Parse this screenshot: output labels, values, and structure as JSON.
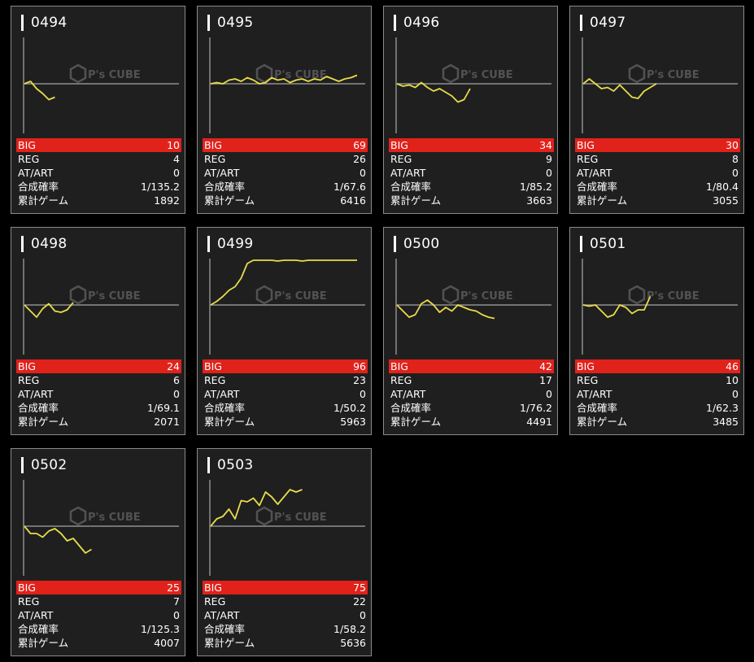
{
  "watermark": {
    "brand": "P's CUBE",
    "icon": "cube-logo-icon"
  },
  "machines": [
    {
      "id": "0494",
      "big": "10",
      "reg": "4",
      "atart": "0",
      "prob": "1/135.2",
      "games": "1892",
      "chart_data": {
        "type": "line",
        "y": [
          0,
          20,
          -40,
          -80,
          -130,
          -110
        ]
      }
    },
    {
      "id": "0495",
      "big": "69",
      "reg": "26",
      "atart": "0",
      "prob": "1/67.6",
      "games": "6416",
      "chart_data": {
        "type": "line",
        "y": [
          0,
          10,
          0,
          30,
          40,
          20,
          50,
          30,
          0,
          10,
          50,
          30,
          40,
          10,
          30,
          40,
          20,
          40,
          30,
          60,
          40,
          20,
          40,
          50,
          70
        ]
      }
    },
    {
      "id": "0496",
      "big": "34",
      "reg": "9",
      "atart": "0",
      "prob": "1/85.2",
      "games": "3663",
      "chart_data": {
        "type": "line",
        "y": [
          0,
          -20,
          -10,
          -30,
          10,
          -30,
          -60,
          -40,
          -70,
          -100,
          -150,
          -130,
          -40
        ]
      }
    },
    {
      "id": "0497",
      "big": "30",
      "reg": "8",
      "atart": "0",
      "prob": "1/80.4",
      "games": "3055",
      "chart_data": {
        "type": "line",
        "y": [
          0,
          40,
          0,
          -40,
          -30,
          -60,
          -10,
          -60,
          -110,
          -120,
          -60,
          -30,
          0
        ]
      }
    },
    {
      "id": "0498",
      "big": "24",
      "reg": "6",
      "atart": "0",
      "prob": "1/69.1",
      "games": "2071",
      "chart_data": {
        "type": "line",
        "y": [
          0,
          -50,
          -100,
          -30,
          10,
          -50,
          -60,
          -40,
          20
        ]
      }
    },
    {
      "id": "0499",
      "big": "96",
      "reg": "23",
      "atart": "0",
      "prob": "1/50.2",
      "games": "5963",
      "chart_data": {
        "type": "line",
        "y": [
          0,
          30,
          70,
          120,
          150,
          220,
          340,
          420,
          430,
          380,
          400,
          360,
          380,
          430,
          400,
          360,
          380,
          440,
          420,
          380,
          420,
          390,
          380,
          400,
          450
        ]
      }
    },
    {
      "id": "0500",
      "big": "42",
      "reg": "17",
      "atart": "0",
      "prob": "1/76.2",
      "games": "4491",
      "chart_data": {
        "type": "line",
        "y": [
          0,
          -50,
          -100,
          -80,
          10,
          40,
          0,
          -60,
          -20,
          -50,
          0,
          -20,
          -40,
          -50,
          -80,
          -100,
          -110
        ]
      }
    },
    {
      "id": "0501",
      "big": "46",
      "reg": "10",
      "atart": "0",
      "prob": "1/62.3",
      "games": "3485",
      "chart_data": {
        "type": "line",
        "y": [
          0,
          -10,
          0,
          -50,
          -100,
          -80,
          0,
          -20,
          -70,
          -40,
          -40,
          70
        ]
      }
    },
    {
      "id": "0502",
      "big": "25",
      "reg": "7",
      "atart": "0",
      "prob": "1/125.3",
      "games": "4007",
      "chart_data": {
        "type": "line",
        "y": [
          0,
          -60,
          -60,
          -90,
          -40,
          -20,
          -60,
          -120,
          -100,
          -160,
          -220,
          -190
        ]
      }
    },
    {
      "id": "0503",
      "big": "75",
      "reg": "22",
      "atart": "0",
      "prob": "1/58.2",
      "games": "5636",
      "chart_data": {
        "type": "line",
        "y": [
          0,
          60,
          80,
          140,
          60,
          210,
          200,
          230,
          170,
          280,
          240,
          180,
          240,
          300,
          280,
          300
        ]
      }
    }
  ],
  "labels": {
    "big": "BIG",
    "reg": "REG",
    "atart": "AT/ART",
    "prob": "合成確率",
    "games": "累計ゲーム"
  },
  "colors": {
    "line": "#e8dc4a",
    "big_row": "#e0221b",
    "axis": "#8f8f8f",
    "card_bg": "#1f1f1f"
  }
}
